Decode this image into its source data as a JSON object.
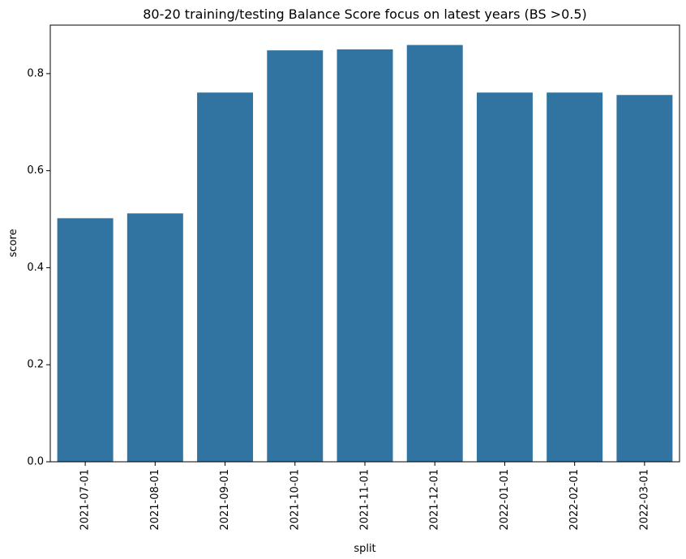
{
  "chart_data": {
    "type": "bar",
    "title": "80-20 training/testing Balance Score focus on latest years (BS >0.5)",
    "xlabel": "split",
    "ylabel": "score",
    "categories": [
      "2021-07-01",
      "2021-08-01",
      "2021-09-01",
      "2021-10-01",
      "2021-11-01",
      "2021-12-01",
      "2022-01-01",
      "2022-02-01",
      "2022-03-01"
    ],
    "values": [
      0.502,
      0.512,
      0.761,
      0.848,
      0.85,
      0.859,
      0.761,
      0.761,
      0.756
    ],
    "ylim": [
      0,
      0.9
    ],
    "yticks": [
      0.0,
      0.2,
      0.4,
      0.6,
      0.8
    ],
    "ytick_labels": [
      "0.0",
      "0.2",
      "0.4",
      "0.6",
      "0.8"
    ],
    "bar_color": "#3274a1",
    "grid": false,
    "legend": "none"
  }
}
